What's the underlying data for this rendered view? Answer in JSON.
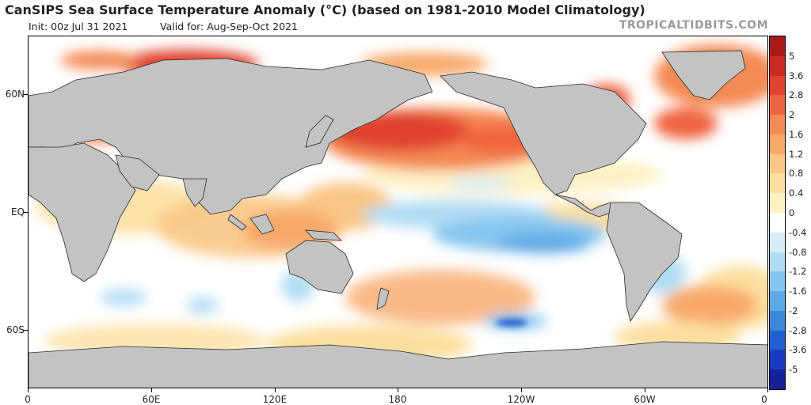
{
  "header": {
    "title": "CanSIPS Sea Surface Temperature Anomaly (°C) (based on 1981-2010 Model Climatology)",
    "init": "Init: 00z Jul 31 2021",
    "valid": "Valid for: Aug-Sep-Oct 2021",
    "brand": "TROPICALTIDBITS.COM"
  },
  "map": {
    "lat_labels": [
      "60N",
      "EQ",
      "60S"
    ],
    "lon_labels": [
      "0",
      "60E",
      "120E",
      "180",
      "120W",
      "60W",
      "0"
    ],
    "land_color": "#c3c3c3",
    "ocean_neutral_color": "#ffffff"
  },
  "colorbar": {
    "labels": [
      "5",
      "3.6",
      "2.8",
      "2",
      "1.6",
      "1.2",
      "0.8",
      "0.4",
      "0",
      "-0.4",
      "-0.8",
      "-1.2",
      "-1.6",
      "-2",
      "-2.8",
      "-3.6",
      "-5"
    ],
    "colors": [
      "#a81a1a",
      "#c92a22",
      "#e0432e",
      "#ef6440",
      "#f48a55",
      "#f7a96b",
      "#f9c685",
      "#fcdf9f",
      "#fdf1c4",
      "#ffffff",
      "#d6ecf8",
      "#b0dcf3",
      "#86c6ee",
      "#5ea8e6",
      "#3c86dc",
      "#2360cf",
      "#1a3dbf",
      "#16209a"
    ]
  },
  "chart_data": {
    "type": "heatmap",
    "title": "CanSIPS Sea Surface Temperature Anomaly (°C) (based on 1981-2010 Model Climatology)",
    "xlabel": "",
    "ylabel": "",
    "x_ticks": [
      "0",
      "60E",
      "120E",
      "180",
      "120W",
      "60W",
      "0"
    ],
    "y_ticks": [
      "60N",
      "EQ",
      "60S"
    ],
    "colorbar_ticks": [
      5,
      3.6,
      2.8,
      2,
      1.6,
      1.2,
      0.8,
      0.4,
      0,
      -0.4,
      -0.8,
      -1.2,
      -1.6,
      -2,
      -2.8,
      -3.6,
      -5
    ],
    "colorbar_range": [
      -5,
      5
    ]
  }
}
